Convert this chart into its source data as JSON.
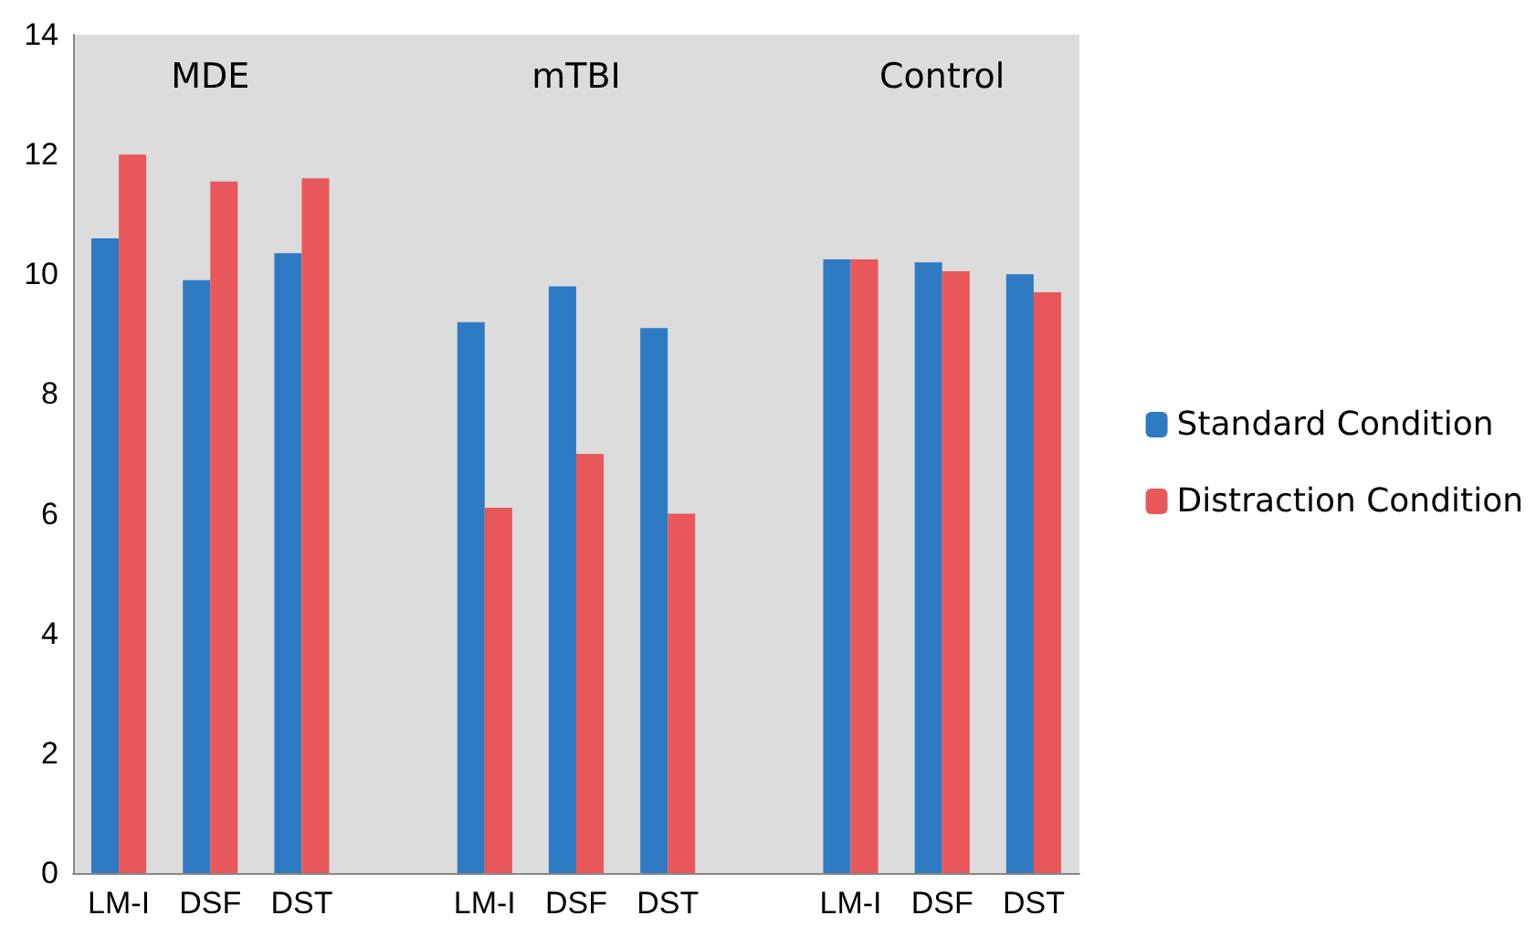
{
  "chart_data": {
    "type": "bar",
    "categories": [
      "LM-I",
      "DSF",
      "DST",
      null,
      "LM-I",
      "DSF",
      "DST",
      null,
      "LM-I",
      "DSF",
      "DST"
    ],
    "series": [
      {
        "name": "Standard Condition",
        "color": "#2e7bc4",
        "values": [
          10.6,
          9.9,
          10.35,
          null,
          9.2,
          9.8,
          9.1,
          null,
          10.25,
          10.2,
          10.0
        ]
      },
      {
        "name": "Distraction Condition",
        "color": "#e8585a",
        "values": [
          12.0,
          11.55,
          11.6,
          null,
          6.1,
          7.0,
          6.0,
          null,
          10.25,
          10.05,
          9.7
        ]
      }
    ],
    "annotations": [
      "MDE",
      "mTBI",
      "Control"
    ],
    "ylim": [
      0,
      14
    ],
    "yticks": [
      0,
      2,
      4,
      6,
      8,
      10,
      12,
      14
    ],
    "grid": false,
    "legend": "right"
  }
}
